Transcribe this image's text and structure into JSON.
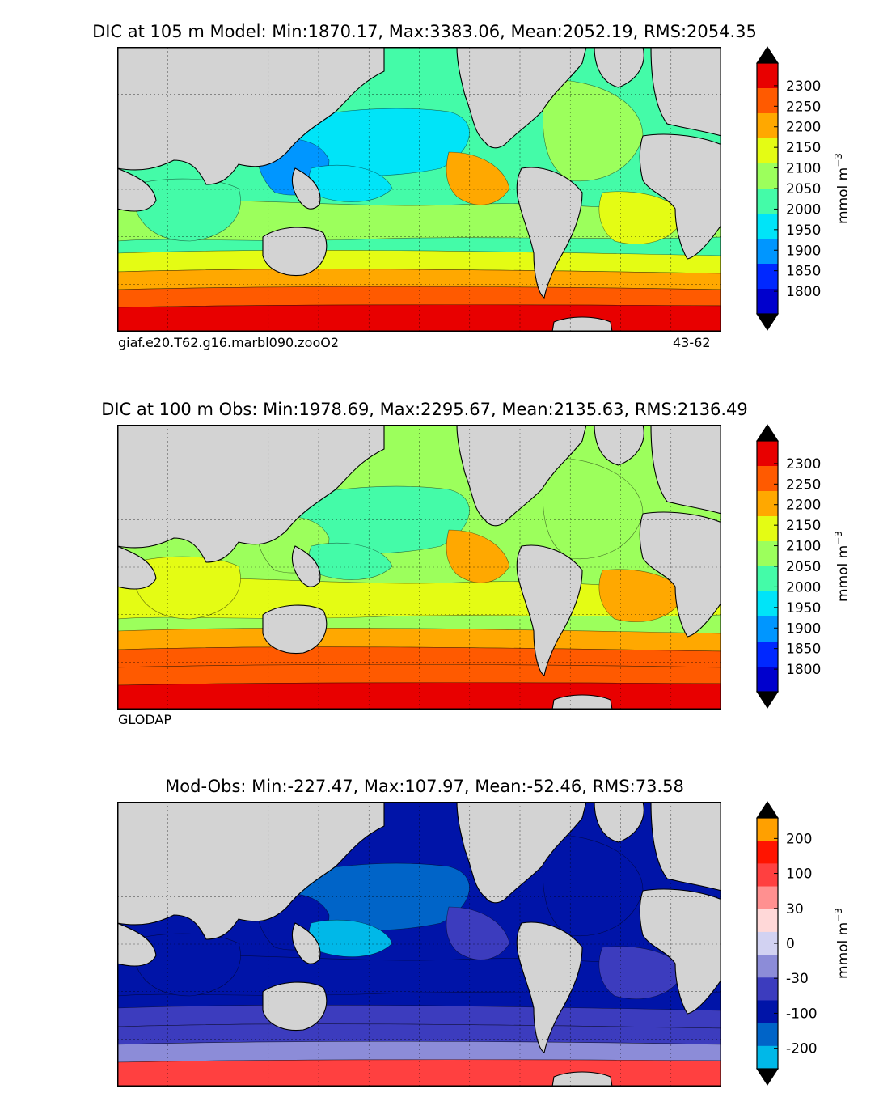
{
  "chart_data": [
    {
      "type": "heatmap",
      "title": "DIC at 105 m Model: Min:1870.17, Max:3383.06, Mean:2052.19, RMS:2054.35",
      "case_label": "giaf.e20.T62.g16.marbl090.zooO2",
      "years_label": "43-62",
      "colorbar": {
        "ticks": [
          "2300",
          "2250",
          "2200",
          "2150",
          "2100",
          "2050",
          "2000",
          "1950",
          "1900",
          "1850",
          "1800"
        ],
        "unit_main": "mmol m",
        "unit_sup": "−3",
        "colors": [
          "#000080",
          "#0000cd",
          "#0028ff",
          "#0096ff",
          "#00e4f8",
          "#44fba8",
          "#9cff5c",
          "#e4fc14",
          "#ffa800",
          "#ff5a00",
          "#e80000",
          "#800000"
        ]
      },
      "field_levels": [
        2010,
        1950,
        1910,
        2050,
        2110,
        2170,
        2220,
        2260,
        2000,
        2080,
        2150,
        1960,
        2120
      ]
    },
    {
      "type": "heatmap",
      "title": "DIC at 100 m Obs: Min:1978.69, Max:2295.67, Mean:2135.63, RMS:2136.49",
      "case_label": "GLODAP",
      "colorbar": {
        "ticks": [
          "2300",
          "2250",
          "2200",
          "2150",
          "2100",
          "2050",
          "2000",
          "1950",
          "1900",
          "1850",
          "1800"
        ],
        "unit_main": "mmol m",
        "unit_sup": "−3",
        "colors": [
          "#000080",
          "#0000cd",
          "#0028ff",
          "#0096ff",
          "#00e4f8",
          "#44fba8",
          "#9cff5c",
          "#e4fc14",
          "#ffa800",
          "#ff5a00",
          "#e80000",
          "#800000"
        ]
      },
      "field_levels": [
        2080,
        2040,
        2060,
        2110,
        2160,
        2210,
        2240,
        2270,
        2130,
        2090,
        2180,
        2000,
        2150
      ]
    },
    {
      "type": "heatmap",
      "title": "Mod-Obs: Min:-227.47, Max:107.97, Mean:-52.46, RMS:73.58",
      "colorbar": {
        "ticks": [
          "200",
          "100",
          "30",
          "0",
          "-30",
          "-100",
          "-200"
        ],
        "unit_main": "mmol m",
        "unit_sup": "−3",
        "colors": [
          "#00ffff",
          "#00b8e8",
          "#0064c8",
          "#0014a8",
          "#3c3cbe",
          "#8c8cd8",
          "#d2d2f2",
          "#ffd8d8",
          "#ff9090",
          "#ff4040",
          "#ff1400",
          "#ffa000",
          "#ffff14"
        ]
      },
      "field_levels": [
        -75,
        -120,
        -90,
        -60,
        -50,
        -40,
        -20,
        30,
        -100,
        -70,
        -35,
        -160,
        -50
      ]
    }
  ]
}
